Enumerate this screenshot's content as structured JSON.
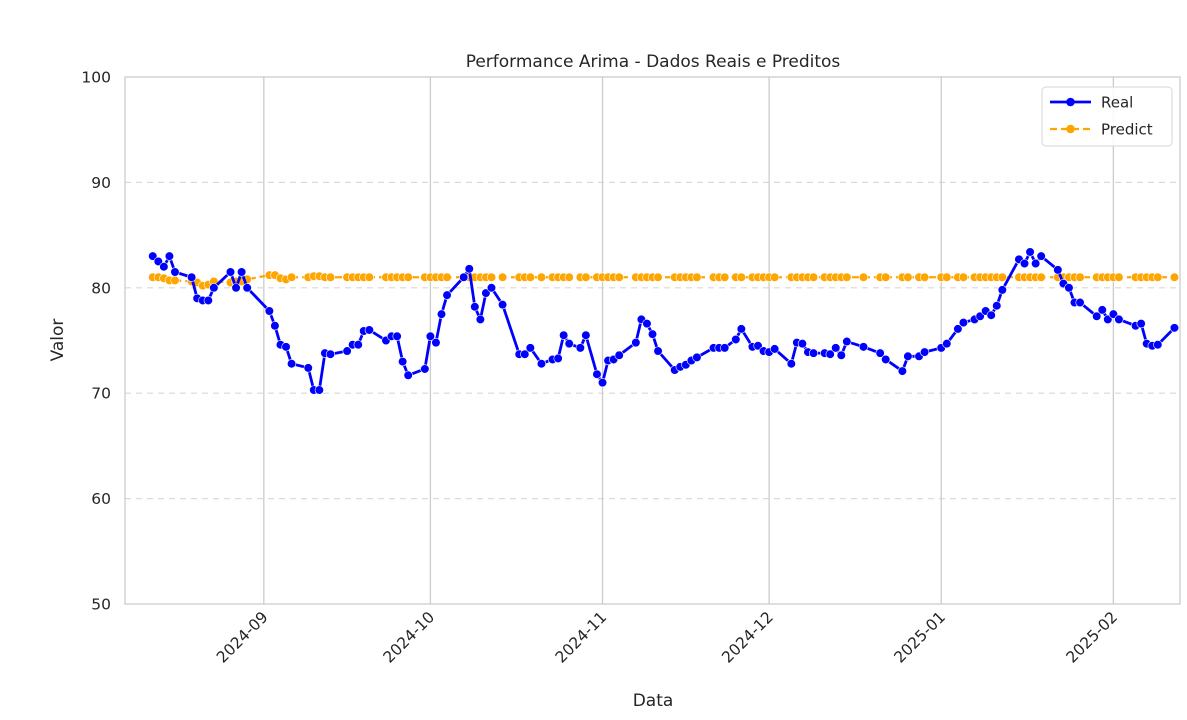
{
  "chart_data": {
    "type": "line",
    "title": "Performance Arima - Dados Reais e Preditos",
    "xlabel": "Data",
    "ylabel": "Valor",
    "ylim": [
      50,
      100
    ],
    "xlim": [
      "2024-08-07",
      "2025-02-13"
    ],
    "yticks": [
      50,
      60,
      70,
      80,
      90,
      100
    ],
    "xticks": [
      {
        "date": "2024-09-01",
        "label": "2024-09"
      },
      {
        "date": "2024-10-01",
        "label": "2024-10"
      },
      {
        "date": "2024-11-01",
        "label": "2024-11"
      },
      {
        "date": "2024-12-01",
        "label": "2024-12"
      },
      {
        "date": "2025-01-01",
        "label": "2025-01"
      },
      {
        "date": "2025-02-01",
        "label": "2025-02"
      }
    ],
    "grid": {
      "horizontal": "dashed",
      "vertical": "solid"
    },
    "legend": {
      "position": "top-right"
    },
    "series": [
      {
        "name": "Real",
        "color": "#0000ff",
        "line_style": "solid",
        "marker": "circle",
        "points": [
          [
            "2024-08-12",
            83.0
          ],
          [
            "2024-08-13",
            82.5
          ],
          [
            "2024-08-14",
            82.0
          ],
          [
            "2024-08-15",
            83.0
          ],
          [
            "2024-08-16",
            81.5
          ],
          [
            "2024-08-19",
            81.0
          ],
          [
            "2024-08-20",
            79.0
          ],
          [
            "2024-08-21",
            78.8
          ],
          [
            "2024-08-22",
            78.8
          ],
          [
            "2024-08-23",
            80.0
          ],
          [
            "2024-08-26",
            81.5
          ],
          [
            "2024-08-27",
            80.0
          ],
          [
            "2024-08-28",
            81.5
          ],
          [
            "2024-08-29",
            80.0
          ],
          [
            "2024-09-02",
            77.8
          ],
          [
            "2024-09-03",
            76.4
          ],
          [
            "2024-09-04",
            74.6
          ],
          [
            "2024-09-05",
            74.4
          ],
          [
            "2024-09-06",
            72.8
          ],
          [
            "2024-09-09",
            72.4
          ],
          [
            "2024-09-10",
            70.3
          ],
          [
            "2024-09-11",
            70.3
          ],
          [
            "2024-09-12",
            73.8
          ],
          [
            "2024-09-13",
            73.7
          ],
          [
            "2024-09-16",
            74.0
          ],
          [
            "2024-09-17",
            74.6
          ],
          [
            "2024-09-18",
            74.6
          ],
          [
            "2024-09-19",
            75.9
          ],
          [
            "2024-09-20",
            76.0
          ],
          [
            "2024-09-23",
            75.0
          ],
          [
            "2024-09-24",
            75.4
          ],
          [
            "2024-09-25",
            75.4
          ],
          [
            "2024-09-26",
            73.0
          ],
          [
            "2024-09-27",
            71.7
          ],
          [
            "2024-09-30",
            72.3
          ],
          [
            "2024-10-01",
            75.4
          ],
          [
            "2024-10-02",
            74.8
          ],
          [
            "2024-10-03",
            77.5
          ],
          [
            "2024-10-04",
            79.3
          ],
          [
            "2024-10-07",
            81.0
          ],
          [
            "2024-10-08",
            81.8
          ],
          [
            "2024-10-09",
            78.2
          ],
          [
            "2024-10-10",
            77.0
          ],
          [
            "2024-10-11",
            79.5
          ],
          [
            "2024-10-12",
            80.0
          ],
          [
            "2024-10-14",
            78.4
          ],
          [
            "2024-10-17",
            73.7
          ],
          [
            "2024-10-18",
            73.7
          ],
          [
            "2024-10-19",
            74.3
          ],
          [
            "2024-10-21",
            72.8
          ],
          [
            "2024-10-23",
            73.2
          ],
          [
            "2024-10-24",
            73.3
          ],
          [
            "2024-10-25",
            75.5
          ],
          [
            "2024-10-26",
            74.7
          ],
          [
            "2024-10-28",
            74.3
          ],
          [
            "2024-10-29",
            75.5
          ],
          [
            "2024-10-31",
            71.8
          ],
          [
            "2024-11-01",
            71.0
          ],
          [
            "2024-11-02",
            73.1
          ],
          [
            "2024-11-03",
            73.2
          ],
          [
            "2024-11-04",
            73.6
          ],
          [
            "2024-11-07",
            74.8
          ],
          [
            "2024-11-08",
            77.0
          ],
          [
            "2024-11-09",
            76.6
          ],
          [
            "2024-11-10",
            75.6
          ],
          [
            "2024-11-11",
            74.0
          ],
          [
            "2024-11-14",
            72.2
          ],
          [
            "2024-11-15",
            72.5
          ],
          [
            "2024-11-16",
            72.7
          ],
          [
            "2024-11-17",
            73.1
          ],
          [
            "2024-11-18",
            73.4
          ],
          [
            "2024-11-21",
            74.3
          ],
          [
            "2024-11-22",
            74.3
          ],
          [
            "2024-11-23",
            74.3
          ],
          [
            "2024-11-25",
            75.1
          ],
          [
            "2024-11-26",
            76.1
          ],
          [
            "2024-11-28",
            74.4
          ],
          [
            "2024-11-29",
            74.5
          ],
          [
            "2024-11-30",
            74.0
          ],
          [
            "2024-12-01",
            73.9
          ],
          [
            "2024-12-02",
            74.2
          ],
          [
            "2024-12-05",
            72.8
          ],
          [
            "2024-12-06",
            74.8
          ],
          [
            "2024-12-07",
            74.7
          ],
          [
            "2024-12-08",
            73.9
          ],
          [
            "2024-12-09",
            73.8
          ],
          [
            "2024-12-11",
            73.8
          ],
          [
            "2024-12-12",
            73.7
          ],
          [
            "2024-12-13",
            74.3
          ],
          [
            "2024-12-14",
            73.6
          ],
          [
            "2024-12-15",
            74.9
          ],
          [
            "2024-12-18",
            74.4
          ],
          [
            "2024-12-21",
            73.8
          ],
          [
            "2024-12-22",
            73.2
          ],
          [
            "2024-12-25",
            72.1
          ],
          [
            "2024-12-26",
            73.5
          ],
          [
            "2024-12-28",
            73.5
          ],
          [
            "2024-12-29",
            73.9
          ],
          [
            "2025-01-01",
            74.3
          ],
          [
            "2025-01-02",
            74.7
          ],
          [
            "2025-01-04",
            76.1
          ],
          [
            "2025-01-05",
            76.7
          ],
          [
            "2025-01-07",
            77.0
          ],
          [
            "2025-01-08",
            77.3
          ],
          [
            "2025-01-09",
            77.8
          ],
          [
            "2025-01-10",
            77.4
          ],
          [
            "2025-01-11",
            78.3
          ],
          [
            "2025-01-12",
            79.8
          ],
          [
            "2025-01-15",
            82.7
          ],
          [
            "2025-01-16",
            82.3
          ],
          [
            "2025-01-17",
            83.4
          ],
          [
            "2025-01-18",
            82.3
          ],
          [
            "2025-01-19",
            83.0
          ],
          [
            "2025-01-22",
            81.7
          ],
          [
            "2025-01-23",
            80.4
          ],
          [
            "2025-01-24",
            80.0
          ],
          [
            "2025-01-25",
            78.6
          ],
          [
            "2025-01-26",
            78.6
          ],
          [
            "2025-01-29",
            77.3
          ],
          [
            "2025-01-30",
            77.9
          ],
          [
            "2025-01-31",
            77.0
          ],
          [
            "2025-02-01",
            77.5
          ],
          [
            "2025-02-02",
            77.0
          ],
          [
            "2025-02-05",
            76.4
          ],
          [
            "2025-02-06",
            76.6
          ],
          [
            "2025-02-07",
            74.7
          ],
          [
            "2025-02-08",
            74.5
          ],
          [
            "2025-02-09",
            74.6
          ],
          [
            "2025-02-12",
            76.2
          ]
        ]
      },
      {
        "name": "Predict",
        "color": "#ffa500",
        "line_style": "dashed",
        "marker": "circle",
        "points": [
          [
            "2024-08-12",
            81.0
          ],
          [
            "2024-08-13",
            81.0
          ],
          [
            "2024-08-14",
            80.9
          ],
          [
            "2024-08-15",
            80.7
          ],
          [
            "2024-08-16",
            80.7
          ],
          [
            "2024-08-19",
            80.6
          ],
          [
            "2024-08-20",
            80.5
          ],
          [
            "2024-08-21",
            80.2
          ],
          [
            "2024-08-22",
            80.3
          ],
          [
            "2024-08-23",
            80.6
          ],
          [
            "2024-08-26",
            80.5
          ],
          [
            "2024-08-27",
            80.6
          ],
          [
            "2024-08-28",
            80.6
          ],
          [
            "2024-08-29",
            80.8
          ],
          [
            "2024-09-02",
            81.2
          ],
          [
            "2024-09-03",
            81.2
          ],
          [
            "2024-09-04",
            80.9
          ],
          [
            "2024-09-05",
            80.8
          ],
          [
            "2024-09-06",
            81.0
          ],
          [
            "2024-09-09",
            81.0
          ],
          [
            "2024-09-10",
            81.1
          ],
          [
            "2024-09-11",
            81.1
          ],
          [
            "2024-09-12",
            81.0
          ],
          [
            "2024-09-13",
            81.0
          ],
          [
            "2024-09-16",
            81.0
          ],
          [
            "2024-09-17",
            81.0
          ],
          [
            "2024-09-18",
            81.0
          ],
          [
            "2024-09-19",
            81.0
          ],
          [
            "2024-09-20",
            81.0
          ],
          [
            "2024-09-23",
            81.0
          ],
          [
            "2024-09-24",
            81.0
          ],
          [
            "2024-09-25",
            81.0
          ],
          [
            "2024-09-26",
            81.0
          ],
          [
            "2024-09-27",
            81.0
          ],
          [
            "2024-09-30",
            81.0
          ],
          [
            "2024-10-01",
            81.0
          ],
          [
            "2024-10-02",
            81.0
          ],
          [
            "2024-10-03",
            81.0
          ],
          [
            "2024-10-04",
            81.0
          ],
          [
            "2024-10-07",
            81.0
          ],
          [
            "2024-10-08",
            81.0
          ],
          [
            "2024-10-09",
            81.0
          ],
          [
            "2024-10-10",
            81.0
          ],
          [
            "2024-10-11",
            81.0
          ],
          [
            "2024-10-12",
            81.0
          ],
          [
            "2024-10-14",
            81.0
          ],
          [
            "2024-10-17",
            81.0
          ],
          [
            "2024-10-18",
            81.0
          ],
          [
            "2024-10-19",
            81.0
          ],
          [
            "2024-10-21",
            81.0
          ],
          [
            "2024-10-23",
            81.0
          ],
          [
            "2024-10-24",
            81.0
          ],
          [
            "2024-10-25",
            81.0
          ],
          [
            "2024-10-26",
            81.0
          ],
          [
            "2024-10-28",
            81.0
          ],
          [
            "2024-10-29",
            81.0
          ],
          [
            "2024-10-31",
            81.0
          ],
          [
            "2024-11-01",
            81.0
          ],
          [
            "2024-11-02",
            81.0
          ],
          [
            "2024-11-03",
            81.0
          ],
          [
            "2024-11-04",
            81.0
          ],
          [
            "2024-11-07",
            81.0
          ],
          [
            "2024-11-08",
            81.0
          ],
          [
            "2024-11-09",
            81.0
          ],
          [
            "2024-11-10",
            81.0
          ],
          [
            "2024-11-11",
            81.0
          ],
          [
            "2024-11-14",
            81.0
          ],
          [
            "2024-11-15",
            81.0
          ],
          [
            "2024-11-16",
            81.0
          ],
          [
            "2024-11-17",
            81.0
          ],
          [
            "2024-11-18",
            81.0
          ],
          [
            "2024-11-21",
            81.0
          ],
          [
            "2024-11-22",
            81.0
          ],
          [
            "2024-11-23",
            81.0
          ],
          [
            "2024-11-25",
            81.0
          ],
          [
            "2024-11-26",
            81.0
          ],
          [
            "2024-11-28",
            81.0
          ],
          [
            "2024-11-29",
            81.0
          ],
          [
            "2024-11-30",
            81.0
          ],
          [
            "2024-12-01",
            81.0
          ],
          [
            "2024-12-02",
            81.0
          ],
          [
            "2024-12-05",
            81.0
          ],
          [
            "2024-12-06",
            81.0
          ],
          [
            "2024-12-07",
            81.0
          ],
          [
            "2024-12-08",
            81.0
          ],
          [
            "2024-12-09",
            81.0
          ],
          [
            "2024-12-11",
            81.0
          ],
          [
            "2024-12-12",
            81.0
          ],
          [
            "2024-12-13",
            81.0
          ],
          [
            "2024-12-14",
            81.0
          ],
          [
            "2024-12-15",
            81.0
          ],
          [
            "2024-12-18",
            81.0
          ],
          [
            "2024-12-21",
            81.0
          ],
          [
            "2024-12-22",
            81.0
          ],
          [
            "2024-12-25",
            81.0
          ],
          [
            "2024-12-26",
            81.0
          ],
          [
            "2024-12-28",
            81.0
          ],
          [
            "2024-12-29",
            81.0
          ],
          [
            "2025-01-01",
            81.0
          ],
          [
            "2025-01-02",
            81.0
          ],
          [
            "2025-01-04",
            81.0
          ],
          [
            "2025-01-05",
            81.0
          ],
          [
            "2025-01-07",
            81.0
          ],
          [
            "2025-01-08",
            81.0
          ],
          [
            "2025-01-09",
            81.0
          ],
          [
            "2025-01-10",
            81.0
          ],
          [
            "2025-01-11",
            81.0
          ],
          [
            "2025-01-12",
            81.0
          ],
          [
            "2025-01-15",
            81.0
          ],
          [
            "2025-01-16",
            81.0
          ],
          [
            "2025-01-17",
            81.0
          ],
          [
            "2025-01-18",
            81.0
          ],
          [
            "2025-01-19",
            81.0
          ],
          [
            "2025-01-22",
            81.0
          ],
          [
            "2025-01-23",
            81.0
          ],
          [
            "2025-01-24",
            81.0
          ],
          [
            "2025-01-25",
            81.0
          ],
          [
            "2025-01-26",
            81.0
          ],
          [
            "2025-01-29",
            81.0
          ],
          [
            "2025-01-30",
            81.0
          ],
          [
            "2025-01-31",
            81.0
          ],
          [
            "2025-02-01",
            81.0
          ],
          [
            "2025-02-02",
            81.0
          ],
          [
            "2025-02-05",
            81.0
          ],
          [
            "2025-02-06",
            81.0
          ],
          [
            "2025-02-07",
            81.0
          ],
          [
            "2025-02-08",
            81.0
          ],
          [
            "2025-02-09",
            81.0
          ],
          [
            "2025-02-12",
            81.0
          ]
        ]
      }
    ]
  }
}
